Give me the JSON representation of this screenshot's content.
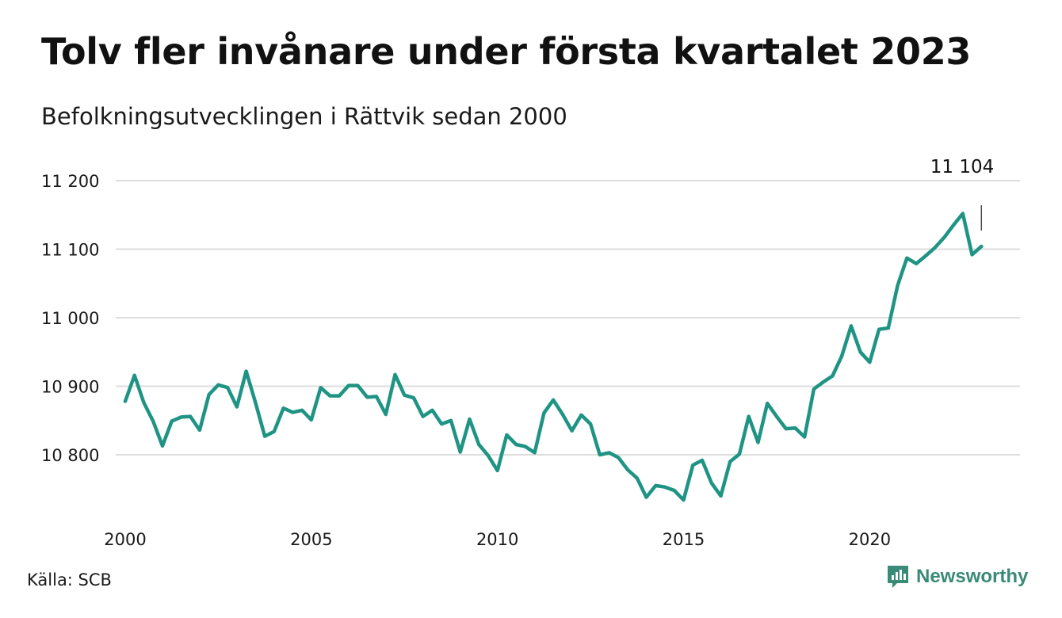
{
  "title": "Tolv fler invånare under första kvartalet 2023",
  "subtitle": "Befolkningsutvecklingen i Rättvik sedan 2000",
  "source": "Källa: SCB",
  "brand": {
    "name": "Newsworthy",
    "icon": "newsworthy-logo-icon",
    "color": "#3a8a78"
  },
  "chart_data": {
    "type": "line",
    "title": "Tolv fler invånare under första kvartalet 2023",
    "subtitle": "Befolkningsutvecklingen i Rättvik sedan 2000",
    "xlabel": "",
    "ylabel": "",
    "xlim": [
      2000.0,
      2023.25
    ],
    "ylim": [
      10730,
      11200
    ],
    "x_ticks": [
      2000,
      2005,
      2010,
      2015,
      2020
    ],
    "y_ticks": [
      {
        "value": 10800,
        "label": "10 800"
      },
      {
        "value": 10900,
        "label": "10 900"
      },
      {
        "value": 11000,
        "label": "11 000"
      },
      {
        "value": 11100,
        "label": "11 100"
      },
      {
        "value": 11200,
        "label": "11 200"
      }
    ],
    "grid": "horizontal",
    "line_color": "#1f9484",
    "annotation": {
      "label": "11 104",
      "value": 11104
    },
    "series": [
      {
        "values": [
          [
            2000.0,
            10878
          ],
          [
            2000.25,
            10916
          ],
          [
            2000.5,
            10876
          ],
          [
            2000.75,
            10849
          ],
          [
            2001.0,
            10813
          ],
          [
            2001.25,
            10849
          ],
          [
            2001.5,
            10855
          ],
          [
            2001.75,
            10856
          ],
          [
            2002.0,
            10836
          ],
          [
            2002.25,
            10888
          ],
          [
            2002.5,
            10902
          ],
          [
            2002.75,
            10898
          ],
          [
            2003.0,
            10870
          ],
          [
            2003.25,
            10922
          ],
          [
            2003.5,
            10876
          ],
          [
            2003.75,
            10827
          ],
          [
            2004.0,
            10834
          ],
          [
            2004.25,
            10868
          ],
          [
            2004.5,
            10862
          ],
          [
            2004.75,
            10865
          ],
          [
            2005.0,
            10851
          ],
          [
            2005.25,
            10898
          ],
          [
            2005.5,
            10886
          ],
          [
            2005.75,
            10886
          ],
          [
            2006.0,
            10901
          ],
          [
            2006.25,
            10901
          ],
          [
            2006.5,
            10884
          ],
          [
            2006.75,
            10885
          ],
          [
            2007.0,
            10859
          ],
          [
            2007.25,
            10917
          ],
          [
            2007.5,
            10887
          ],
          [
            2007.75,
            10883
          ],
          [
            2008.0,
            10856
          ],
          [
            2008.25,
            10865
          ],
          [
            2008.5,
            10845
          ],
          [
            2008.75,
            10850
          ],
          [
            2009.0,
            10804
          ],
          [
            2009.25,
            10852
          ],
          [
            2009.5,
            10815
          ],
          [
            2009.75,
            10799
          ],
          [
            2010.0,
            10777
          ],
          [
            2010.25,
            10829
          ],
          [
            2010.5,
            10815
          ],
          [
            2010.75,
            10812
          ],
          [
            2011.0,
            10803
          ],
          [
            2011.25,
            10861
          ],
          [
            2011.5,
            10880
          ],
          [
            2011.75,
            10859
          ],
          [
            2012.0,
            10835
          ],
          [
            2012.25,
            10858
          ],
          [
            2012.5,
            10845
          ],
          [
            2012.75,
            10800
          ],
          [
            2013.0,
            10803
          ],
          [
            2013.25,
            10796
          ],
          [
            2013.5,
            10778
          ],
          [
            2013.75,
            10766
          ],
          [
            2014.0,
            10738
          ],
          [
            2014.25,
            10755
          ],
          [
            2014.5,
            10753
          ],
          [
            2014.75,
            10748
          ],
          [
            2015.0,
            10734
          ],
          [
            2015.25,
            10785
          ],
          [
            2015.5,
            10792
          ],
          [
            2015.75,
            10759
          ],
          [
            2016.0,
            10740
          ],
          [
            2016.25,
            10790
          ],
          [
            2016.5,
            10801
          ],
          [
            2016.75,
            10856
          ],
          [
            2017.0,
            10818
          ],
          [
            2017.25,
            10875
          ],
          [
            2017.5,
            10856
          ],
          [
            2017.75,
            10838
          ],
          [
            2018.0,
            10839
          ],
          [
            2018.25,
            10826
          ],
          [
            2018.5,
            10896
          ],
          [
            2018.75,
            10906
          ],
          [
            2019.0,
            10915
          ],
          [
            2019.25,
            10944
          ],
          [
            2019.5,
            10988
          ],
          [
            2019.75,
            10950
          ],
          [
            2020.0,
            10935
          ],
          [
            2020.25,
            10983
          ],
          [
            2020.5,
            10985
          ],
          [
            2020.75,
            11047
          ],
          [
            2021.0,
            11087
          ],
          [
            2021.25,
            11079
          ],
          [
            2021.5,
            11090
          ],
          [
            2021.75,
            11102
          ],
          [
            2022.0,
            11117
          ],
          [
            2022.25,
            11135
          ],
          [
            2022.5,
            11152
          ],
          [
            2022.75,
            11092
          ],
          [
            2023.0,
            11104
          ]
        ]
      }
    ]
  }
}
